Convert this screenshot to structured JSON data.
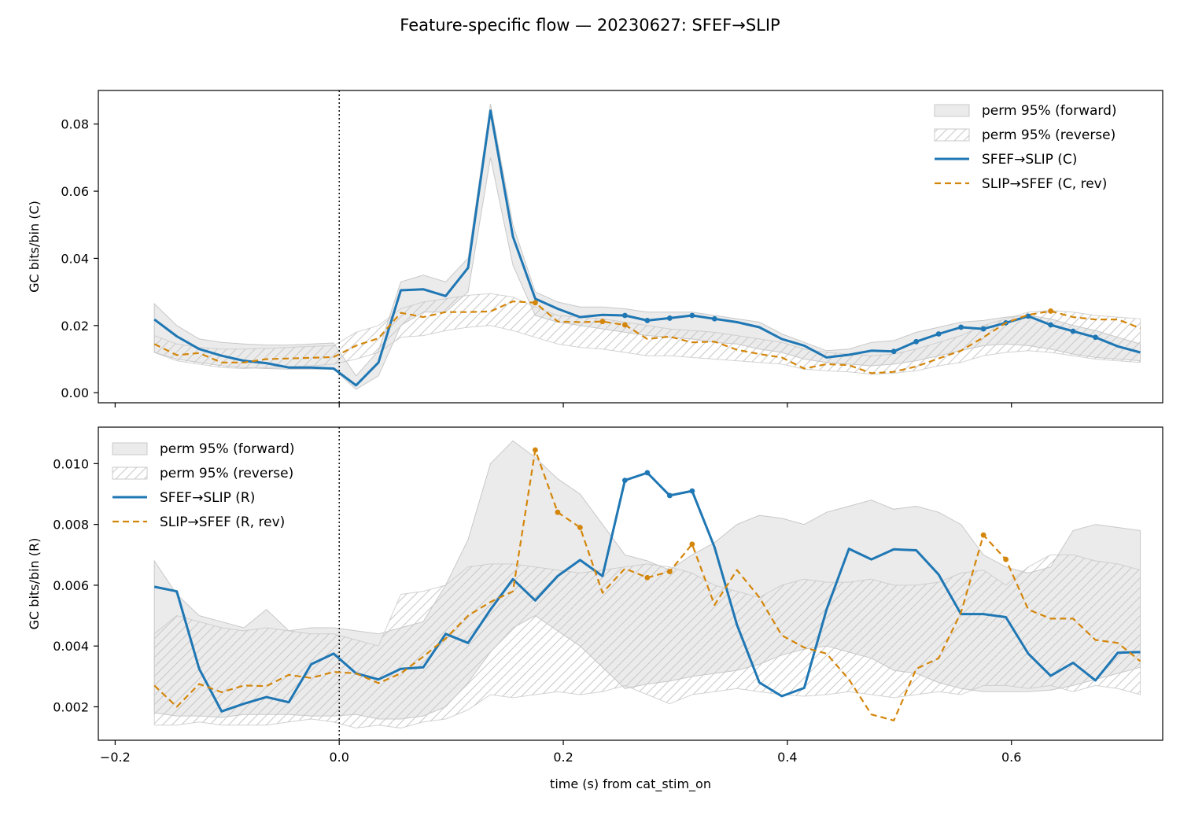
{
  "figure": {
    "suptitle": "Feature-specific flow — 20230627: SFEF→SLIP"
  },
  "colors": {
    "forward_line": "#1f77b4",
    "reverse_line": "#d4860b",
    "perm_fill": "#c8c8c8",
    "hatch": "#c8c8c8"
  },
  "chart_data": [
    {
      "type": "line",
      "title": "",
      "xlabel": "",
      "ylabel": "GC bits/bin (C)",
      "xlim": [
        -0.215,
        0.735
      ],
      "ylim": [
        -0.003,
        0.09
      ],
      "xticks": [
        -0.2,
        0.0,
        0.2,
        0.4,
        0.6
      ],
      "xticklabels": [
        "",
        "",
        "",
        "",
        ""
      ],
      "yticks": [
        0.0,
        0.02,
        0.04,
        0.06,
        0.08
      ],
      "yticklabels": [
        "0.00",
        "0.02",
        "0.04",
        "0.06",
        "0.08"
      ],
      "vline_x": 0.0,
      "legend_position": "upper right",
      "legend": [
        "perm 95% (forward)",
        "perm 95% (reverse)",
        "SFEF→SLIP (C)",
        "SLIP→SFEF (C, rev)"
      ],
      "x": [
        -0.165,
        -0.145,
        -0.125,
        -0.105,
        -0.085,
        -0.065,
        -0.045,
        -0.025,
        -0.005,
        0.015,
        0.035,
        0.055,
        0.075,
        0.095,
        0.115,
        0.135,
        0.155,
        0.175,
        0.195,
        0.215,
        0.235,
        0.255,
        0.275,
        0.295,
        0.315,
        0.335,
        0.355,
        0.375,
        0.395,
        0.415,
        0.435,
        0.455,
        0.475,
        0.495,
        0.515,
        0.535,
        0.555,
        0.575,
        0.595,
        0.615,
        0.635,
        0.655,
        0.675,
        0.695,
        0.715
      ],
      "series": [
        {
          "name": "SFEF→SLIP (C)",
          "role": "forward",
          "values": [
            0.0218,
            0.0168,
            0.013,
            0.011,
            0.0095,
            0.0088,
            0.0075,
            0.0075,
            0.0072,
            0.0022,
            0.009,
            0.0305,
            0.0308,
            0.0288,
            0.0372,
            0.084,
            0.0465,
            0.028,
            0.025,
            0.0225,
            0.0232,
            0.023,
            0.0215,
            0.0222,
            0.023,
            0.022,
            0.021,
            0.0195,
            0.016,
            0.014,
            0.0105,
            0.0113,
            0.0125,
            0.0123,
            0.0152,
            0.0175,
            0.0195,
            0.019,
            0.0208,
            0.0228,
            0.0202,
            0.0183,
            0.0165,
            0.0138,
            0.012
          ],
          "markers": [
            0.255,
            0.275,
            0.295,
            0.315,
            0.335,
            0.495,
            0.515,
            0.535,
            0.555,
            0.575,
            0.595,
            0.615,
            0.635,
            0.655,
            0.675
          ]
        },
        {
          "name": "SLIP→SFEF (C, rev)",
          "role": "reverse",
          "values": [
            0.0145,
            0.0112,
            0.0118,
            0.009,
            0.009,
            0.01,
            0.0102,
            0.0104,
            0.0106,
            0.014,
            0.0162,
            0.0238,
            0.0225,
            0.024,
            0.024,
            0.0242,
            0.0272,
            0.0268,
            0.0212,
            0.021,
            0.0212,
            0.0202,
            0.016,
            0.0167,
            0.015,
            0.0152,
            0.0128,
            0.0115,
            0.0105,
            0.0072,
            0.0085,
            0.0082,
            0.0058,
            0.0062,
            0.0078,
            0.0102,
            0.0125,
            0.0165,
            0.0208,
            0.0232,
            0.0243,
            0.0225,
            0.0218,
            0.0218,
            0.0192
          ],
          "markers": [
            0.175,
            0.235,
            0.255,
            0.635
          ]
        }
      ],
      "bands": [
        {
          "name": "perm 95% (forward)",
          "style": "fill",
          "lower": [
            0.012,
            0.01,
            0.009,
            0.008,
            0.0075,
            0.0072,
            0.007,
            0.007,
            0.007,
            0.001,
            0.005,
            0.02,
            0.024,
            0.024,
            0.03,
            0.07,
            0.038,
            0.023,
            0.021,
            0.02,
            0.019,
            0.018,
            0.017,
            0.0165,
            0.016,
            0.015,
            0.0145,
            0.013,
            0.012,
            0.01,
            0.009,
            0.0085,
            0.008,
            0.0085,
            0.0095,
            0.011,
            0.0125,
            0.014,
            0.0145,
            0.014,
            0.013,
            0.0115,
            0.0105,
            0.01,
            0.0095
          ],
          "upper": [
            0.0265,
            0.02,
            0.016,
            0.015,
            0.0145,
            0.0142,
            0.0142,
            0.0145,
            0.0148,
            0.005,
            0.0125,
            0.033,
            0.035,
            0.033,
            0.04,
            0.086,
            0.05,
            0.03,
            0.027,
            0.0255,
            0.0255,
            0.025,
            0.024,
            0.024,
            0.024,
            0.023,
            0.022,
            0.021,
            0.0175,
            0.015,
            0.0125,
            0.013,
            0.015,
            0.0155,
            0.018,
            0.0195,
            0.021,
            0.0215,
            0.0225,
            0.023,
            0.022,
            0.02,
            0.0185,
            0.0165,
            0.0145
          ]
        },
        {
          "name": "perm 95% (reverse)",
          "style": "hatch",
          "lower": [
            0.012,
            0.0095,
            0.0085,
            0.0075,
            0.0072,
            0.0075,
            0.0078,
            0.008,
            0.0085,
            0.01,
            0.012,
            0.0165,
            0.017,
            0.0185,
            0.0195,
            0.02,
            0.0185,
            0.0165,
            0.0145,
            0.0135,
            0.013,
            0.012,
            0.011,
            0.011,
            0.0105,
            0.01,
            0.0095,
            0.009,
            0.0085,
            0.007,
            0.0065,
            0.0062,
            0.0055,
            0.0058,
            0.0065,
            0.008,
            0.009,
            0.011,
            0.012,
            0.0125,
            0.012,
            0.011,
            0.01,
            0.0095,
            0.009
          ],
          "upper": [
            0.017,
            0.0145,
            0.0135,
            0.013,
            0.013,
            0.0132,
            0.0135,
            0.0138,
            0.014,
            0.018,
            0.02,
            0.025,
            0.027,
            0.028,
            0.029,
            0.0295,
            0.0285,
            0.0255,
            0.023,
            0.0225,
            0.022,
            0.021,
            0.02,
            0.019,
            0.0185,
            0.018,
            0.017,
            0.016,
            0.015,
            0.013,
            0.012,
            0.0115,
            0.011,
            0.0115,
            0.013,
            0.015,
            0.017,
            0.02,
            0.022,
            0.024,
            0.0245,
            0.024,
            0.023,
            0.0225,
            0.022
          ]
        }
      ]
    },
    {
      "type": "line",
      "title": "",
      "xlabel": "time (s) from cat_stim_on",
      "ylabel": "GC bits/bin (R)",
      "xlim": [
        -0.215,
        0.735
      ],
      "ylim": [
        0.0009,
        0.0112
      ],
      "xticks": [
        -0.2,
        0.0,
        0.2,
        0.4,
        0.6
      ],
      "xticklabels": [
        "−0.2",
        "0.0",
        "0.2",
        "0.4",
        "0.6"
      ],
      "yticks": [
        0.002,
        0.004,
        0.006,
        0.008,
        0.01
      ],
      "yticklabels": [
        "0.002",
        "0.004",
        "0.006",
        "0.008",
        "0.010"
      ],
      "vline_x": 0.0,
      "legend_position": "upper left",
      "legend": [
        "perm 95% (forward)",
        "perm 95% (reverse)",
        "SFEF→SLIP (R)",
        "SLIP→SFEF (R, rev)"
      ],
      "x": [
        -0.165,
        -0.145,
        -0.125,
        -0.105,
        -0.085,
        -0.065,
        -0.045,
        -0.025,
        -0.005,
        0.015,
        0.035,
        0.055,
        0.075,
        0.095,
        0.115,
        0.135,
        0.155,
        0.175,
        0.195,
        0.215,
        0.235,
        0.255,
        0.275,
        0.295,
        0.315,
        0.335,
        0.355,
        0.375,
        0.395,
        0.415,
        0.435,
        0.455,
        0.475,
        0.495,
        0.515,
        0.535,
        0.555,
        0.575,
        0.595,
        0.615,
        0.635,
        0.655,
        0.675,
        0.695,
        0.715
      ],
      "series": [
        {
          "name": "SFEF→SLIP (R)",
          "role": "forward",
          "values": [
            0.00595,
            0.0058,
            0.00325,
            0.00185,
            0.0021,
            0.00232,
            0.00215,
            0.0034,
            0.00375,
            0.0031,
            0.0029,
            0.00325,
            0.0033,
            0.0044,
            0.0041,
            0.0052,
            0.0062,
            0.0055,
            0.0063,
            0.00683,
            0.0063,
            0.00945,
            0.0097,
            0.00895,
            0.0091,
            0.00725,
            0.0047,
            0.0028,
            0.00235,
            0.00262,
            0.0052,
            0.0072,
            0.00685,
            0.00718,
            0.00715,
            0.00635,
            0.00505,
            0.00505,
            0.00495,
            0.00375,
            0.00302,
            0.00345,
            0.00287,
            0.00378,
            0.0038
          ],
          "markers": [
            0.255,
            0.275,
            0.295,
            0.315
          ]
        },
        {
          "name": "SLIP→SFEF (R, rev)",
          "role": "reverse",
          "values": [
            0.0027,
            0.002,
            0.00275,
            0.00248,
            0.0027,
            0.00268,
            0.00305,
            0.00295,
            0.00315,
            0.0031,
            0.00278,
            0.0031,
            0.00365,
            0.00425,
            0.005,
            0.00545,
            0.0058,
            0.01045,
            0.0084,
            0.0079,
            0.00575,
            0.00655,
            0.00625,
            0.00645,
            0.00735,
            0.00535,
            0.0065,
            0.0056,
            0.00435,
            0.00395,
            0.00375,
            0.0029,
            0.00175,
            0.00155,
            0.00325,
            0.0036,
            0.0051,
            0.00765,
            0.00685,
            0.0052,
            0.0049,
            0.0049,
            0.0042,
            0.0041,
            0.0035
          ],
          "markers": [
            0.175,
            0.195,
            0.215,
            0.275,
            0.295,
            0.315,
            0.575,
            0.595
          ]
        }
      ],
      "bands": [
        {
          "name": "perm 95% (forward)",
          "style": "fill",
          "lower": [
            0.0018,
            0.0017,
            0.0017,
            0.00165,
            0.00175,
            0.00175,
            0.00175,
            0.0017,
            0.0017,
            0.00175,
            0.0016,
            0.0016,
            0.0017,
            0.002,
            0.0028,
            0.0038,
            0.0046,
            0.005,
            0.0045,
            0.004,
            0.0033,
            0.0026,
            0.00275,
            0.00285,
            0.003,
            0.0031,
            0.0032,
            0.0034,
            0.0037,
            0.0039,
            0.004,
            0.0038,
            0.0036,
            0.0032,
            0.0031,
            0.0028,
            0.0026,
            0.0025,
            0.0025,
            0.0025,
            0.00255,
            0.0027,
            0.0029,
            0.0031,
            0.0033
          ],
          "upper": [
            0.0068,
            0.0057,
            0.005,
            0.0048,
            0.0046,
            0.0052,
            0.0045,
            0.0046,
            0.0046,
            0.0045,
            0.0044,
            0.0046,
            0.0048,
            0.006,
            0.0075,
            0.01,
            0.01075,
            0.0102,
            0.0095,
            0.009,
            0.008,
            0.007,
            0.0068,
            0.0065,
            0.007,
            0.0074,
            0.008,
            0.0083,
            0.0082,
            0.008,
            0.0084,
            0.0086,
            0.0088,
            0.0085,
            0.0086,
            0.0084,
            0.008,
            0.007,
            0.0066,
            0.0064,
            0.0066,
            0.0078,
            0.008,
            0.0079,
            0.0078
          ]
        },
        {
          "name": "perm 95% (reverse)",
          "style": "hatch",
          "lower": [
            0.0014,
            0.0014,
            0.0015,
            0.0014,
            0.0014,
            0.0014,
            0.0015,
            0.0016,
            0.0015,
            0.0013,
            0.0014,
            0.0013,
            0.0015,
            0.0016,
            0.0019,
            0.0024,
            0.0023,
            0.0024,
            0.0025,
            0.0024,
            0.0025,
            0.0027,
            0.0024,
            0.0021,
            0.0024,
            0.0025,
            0.0026,
            0.0025,
            0.0024,
            0.00235,
            0.0024,
            0.0025,
            0.0024,
            0.0023,
            0.0024,
            0.0025,
            0.0024,
            0.0027,
            0.0027,
            0.0026,
            0.0027,
            0.0025,
            0.0027,
            0.0026,
            0.0024
          ],
          "upper": [
            0.0044,
            0.005,
            0.0048,
            0.0046,
            0.0045,
            0.0046,
            0.0045,
            0.0044,
            0.0044,
            0.0042,
            0.004,
            0.0057,
            0.0058,
            0.006,
            0.0066,
            0.0067,
            0.0067,
            0.0066,
            0.0065,
            0.0064,
            0.0065,
            0.0066,
            0.0067,
            0.0066,
            0.0064,
            0.006,
            0.0058,
            0.0056,
            0.006,
            0.0062,
            0.0061,
            0.0061,
            0.0062,
            0.006,
            0.006,
            0.0061,
            0.0064,
            0.0065,
            0.006,
            0.0066,
            0.007,
            0.007,
            0.0068,
            0.0067,
            0.0065
          ]
        }
      ]
    }
  ]
}
